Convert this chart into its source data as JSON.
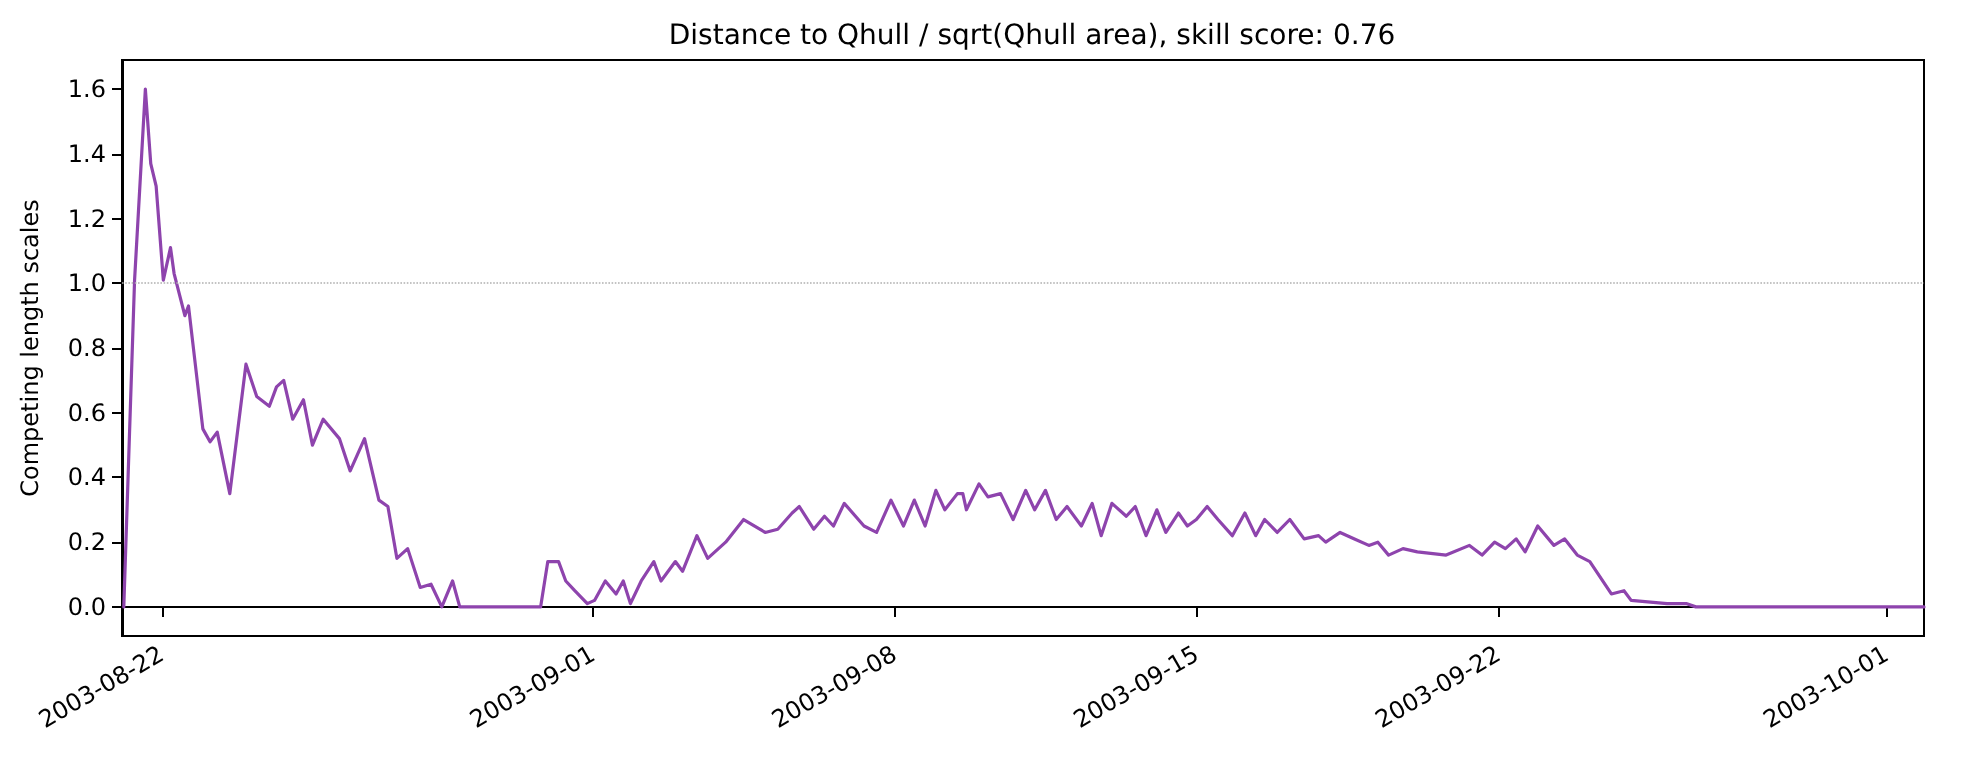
{
  "chart_data": {
    "type": "line",
    "title": "Distance to Qhull / sqrt(Qhull area), skill score: 0.76",
    "ylabel": "Competing length scales",
    "x": [
      "2003-08-21T03:00",
      "2003-08-21T09:00",
      "2003-08-21T15:00",
      "2003-08-21T18:00",
      "2003-08-21T21:00",
      "2003-08-22T01:00",
      "2003-08-22T05:00",
      "2003-08-22T07:00",
      "2003-08-22T13:00",
      "2003-08-22T15:00",
      "2003-08-22T23:00",
      "2003-08-23T03:00",
      "2003-08-23T07:00",
      "2003-08-23T14:00",
      "2003-08-23T23:00",
      "2003-08-24T05:00",
      "2003-08-24T12:00",
      "2003-08-24T16:00",
      "2003-08-24T20:00",
      "2003-08-25T01:00",
      "2003-08-25T07:00",
      "2003-08-25T12:00",
      "2003-08-25T18:00",
      "2003-08-26T03:00",
      "2003-08-26T09:00",
      "2003-08-26T17:00",
      "2003-08-27T01:00",
      "2003-08-27T06:00",
      "2003-08-27T11:00",
      "2003-08-27T17:00",
      "2003-08-28T00:00",
      "2003-08-28T06:00",
      "2003-08-28T12:00",
      "2003-08-28T18:00",
      "2003-08-28T22:00",
      "2003-08-30T16:00",
      "2003-08-30T19:00",
      "2003-08-30T23:00",
      "2003-08-31T05:00",
      "2003-08-31T09:00",
      "2003-08-31T14:00",
      "2003-08-31T21:00",
      "2003-09-01T01:00",
      "2003-09-01T07:00",
      "2003-09-01T13:00",
      "2003-09-01T17:00",
      "2003-09-01T21:00",
      "2003-09-02T03:00",
      "2003-09-02T10:00",
      "2003-09-02T14:00",
      "2003-09-02T22:00",
      "2003-09-03T02:00",
      "2003-09-03T10:00",
      "2003-09-03T16:00",
      "2003-09-04T02:00",
      "2003-09-04T12:00",
      "2003-09-05T00:00",
      "2003-09-05T07:00",
      "2003-09-05T15:00",
      "2003-09-05T19:00",
      "2003-09-06T03:00",
      "2003-09-06T09:00",
      "2003-09-06T14:00",
      "2003-09-06T20:00",
      "2003-09-07T07:00",
      "2003-09-07T14:00",
      "2003-09-07T22:00",
      "2003-09-08T05:00",
      "2003-09-08T11:00",
      "2003-09-08T17:00",
      "2003-09-08T23:00",
      "2003-09-09T04:00",
      "2003-09-09T11:00",
      "2003-09-09T14:00",
      "2003-09-09T16:00",
      "2003-09-09T23:00",
      "2003-09-10T04:00",
      "2003-09-10T11:00",
      "2003-09-10T18:00",
      "2003-09-11T01:00",
      "2003-09-11T06:00",
      "2003-09-11T12:00",
      "2003-09-11T18:00",
      "2003-09-12T00:00",
      "2003-09-12T08:00",
      "2003-09-12T14:00",
      "2003-09-12T19:00",
      "2003-09-13T01:00",
      "2003-09-13T09:00",
      "2003-09-13T14:00",
      "2003-09-13T20:00",
      "2003-09-14T02:00",
      "2003-09-14T07:00",
      "2003-09-14T14:00",
      "2003-09-14T19:00",
      "2003-09-15T00:00",
      "2003-09-15T06:00",
      "2003-09-15T12:00",
      "2003-09-15T20:00",
      "2003-09-16T03:00",
      "2003-09-16T09:00",
      "2003-09-16T14:00",
      "2003-09-16T21:00",
      "2003-09-17T04:00",
      "2003-09-17T12:00",
      "2003-09-17T20:00",
      "2003-09-18T00:00",
      "2003-09-18T08:00",
      "2003-09-18T16:00",
      "2003-09-19T00:00",
      "2003-09-19T05:00",
      "2003-09-19T11:00",
      "2003-09-19T19:00",
      "2003-09-20T03:00",
      "2003-09-20T19:00",
      "2003-09-21T08:00",
      "2003-09-21T15:00",
      "2003-09-21T22:00",
      "2003-09-22T04:00",
      "2003-09-22T10:00",
      "2003-09-22T15:00",
      "2003-09-22T22:00",
      "2003-09-23T07:00",
      "2003-09-23T13:00",
      "2003-09-23T20:00",
      "2003-09-24T03:00",
      "2003-09-24T15:00",
      "2003-09-24T22:00",
      "2003-09-25T02:00",
      "2003-09-25T22:00",
      "2003-09-26T09:00",
      "2003-09-26T14:00",
      "2003-09-26T22:00",
      "2003-10-01T21:00"
    ],
    "series": [
      {
        "color": "#8e44ad",
        "values": [
          0.0,
          1.01,
          1.6,
          1.37,
          1.3,
          1.01,
          1.11,
          1.03,
          0.9,
          0.93,
          0.55,
          0.51,
          0.54,
          0.35,
          0.75,
          0.65,
          0.62,
          0.68,
          0.7,
          0.58,
          0.64,
          0.5,
          0.58,
          0.52,
          0.42,
          0.52,
          0.33,
          0.31,
          0.15,
          0.18,
          0.06,
          0.07,
          0.0,
          0.08,
          0.0,
          0.0,
          0.0,
          0.14,
          0.14,
          0.08,
          0.05,
          0.01,
          0.02,
          0.08,
          0.04,
          0.08,
          0.01,
          0.08,
          0.14,
          0.08,
          0.14,
          0.11,
          0.22,
          0.15,
          0.2,
          0.27,
          0.23,
          0.24,
          0.29,
          0.31,
          0.24,
          0.28,
          0.25,
          0.32,
          0.25,
          0.23,
          0.33,
          0.25,
          0.33,
          0.25,
          0.36,
          0.3,
          0.35,
          0.35,
          0.3,
          0.38,
          0.34,
          0.35,
          0.27,
          0.36,
          0.3,
          0.36,
          0.27,
          0.31,
          0.25,
          0.32,
          0.22,
          0.32,
          0.28,
          0.31,
          0.22,
          0.3,
          0.23,
          0.29,
          0.25,
          0.27,
          0.31,
          0.27,
          0.22,
          0.29,
          0.22,
          0.27,
          0.23,
          0.27,
          0.21,
          0.22,
          0.2,
          0.23,
          0.21,
          0.19,
          0.2,
          0.16,
          0.18,
          0.17,
          0.16,
          0.19,
          0.16,
          0.2,
          0.18,
          0.21,
          0.17,
          0.25,
          0.19,
          0.21,
          0.16,
          0.14,
          0.04,
          0.05,
          0.02,
          0.01,
          0.01,
          0.0,
          0.0,
          0.0
        ]
      }
    ],
    "xlim": [
      "2003-08-21T02:00",
      "2003-10-01T21:00"
    ],
    "xticks": [
      "2003-08-22",
      "2003-09-01",
      "2003-09-08",
      "2003-09-15",
      "2003-09-22",
      "2003-10-01"
    ],
    "ylim": [
      -0.09,
      1.69
    ],
    "yticks": [
      {
        "value": 0,
        "label": "0.0"
      },
      {
        "value": 0.2,
        "label": "0.2"
      },
      {
        "value": 0.4,
        "label": "0.4"
      },
      {
        "value": 0.6,
        "label": "0.6"
      },
      {
        "value": 0.8,
        "label": "0.8"
      },
      {
        "value": 1.0,
        "label": "1.0"
      },
      {
        "value": 1.2,
        "label": "1.2"
      },
      {
        "value": 1.4,
        "label": "1.4"
      },
      {
        "value": 1.6,
        "label": "1.6"
      }
    ],
    "ref_lines": [
      {
        "axis": "y",
        "value": 1.0,
        "color": "#b0b0b0",
        "line_style": "dotted"
      }
    ],
    "grid": false,
    "marker": "none",
    "line_style": "solid"
  }
}
